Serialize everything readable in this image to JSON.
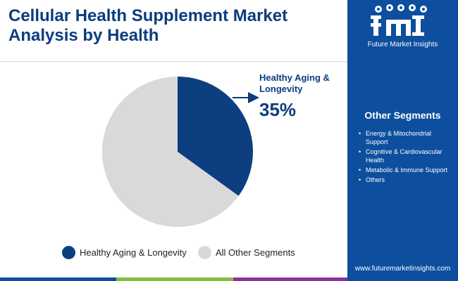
{
  "title": "Cellular Health Supplement Market Analysis by Health",
  "brand": {
    "logo_text": "fmi",
    "name": "Future Market Insights",
    "url": "www.futuremarketinsights.com"
  },
  "sidebar": {
    "heading": "Other Segments",
    "items": [
      "Energy & Mitochondrial Support",
      "Cognitive & Cardiovascular Health",
      "Metabolic & Immune Support",
      "Others"
    ]
  },
  "callout": {
    "label": "Healthy Aging & Longevity",
    "value": "35%"
  },
  "chart_data": {
    "type": "pie",
    "slices": [
      {
        "label": "Healthy Aging & Longevity",
        "value": 35,
        "color": "#0d3f80"
      },
      {
        "label": "All Other Segments",
        "value": 65,
        "color": "#d9d9d9"
      }
    ],
    "legend_position": "bottom"
  },
  "colors": {
    "primary": "#0d4f9e",
    "title": "#0b3d7d",
    "bottom_bar": [
      "#0d4f9e",
      "#7cbf3c",
      "#f39c1f",
      "#8e2f9b"
    ]
  }
}
